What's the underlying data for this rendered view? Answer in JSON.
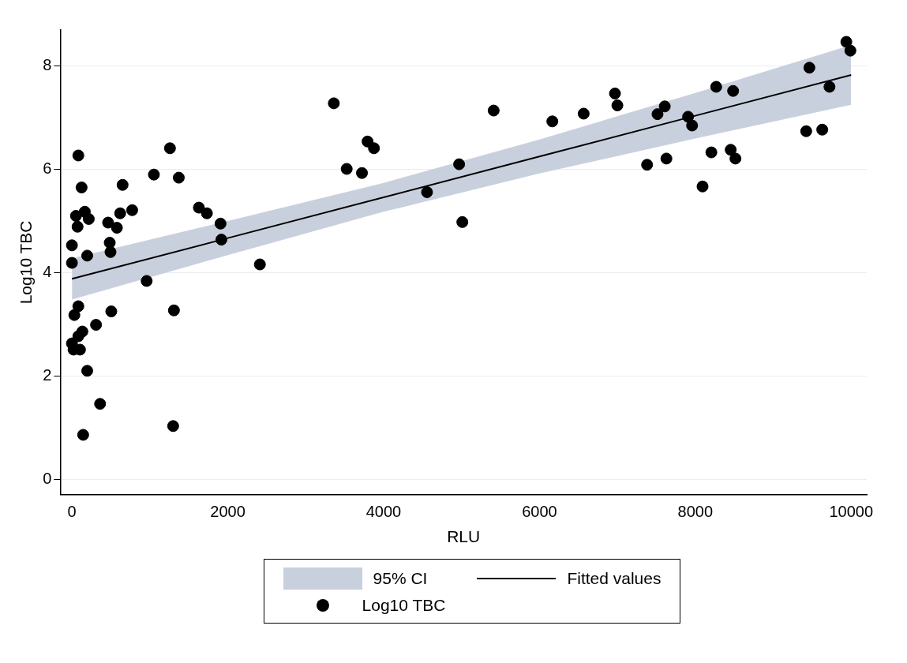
{
  "chart_data": {
    "type": "scatter",
    "xlabel": "RLU",
    "ylabel": "Log10 TBC",
    "xlim": [
      -150,
      10200
    ],
    "ylim": [
      -0.3,
      8.7
    ],
    "xticks": [
      0,
      2000,
      4000,
      6000,
      8000,
      10000
    ],
    "yticks": [
      0,
      2,
      4,
      6,
      8
    ],
    "grid": "y",
    "annotations": [
      "95% CI"
    ],
    "legend": "bottom",
    "line_style": "solid",
    "series": [
      {
        "name": "Fitted values",
        "type": "line",
        "marker": "none",
        "color": "#000000",
        "x": [
          0,
          2000,
          4000,
          6000,
          8000,
          10000
        ],
        "values": [
          3.88,
          4.67,
          5.46,
          6.25,
          7.04,
          7.83
        ],
        "lower": [
          3.48,
          4.34,
          5.18,
          5.92,
          6.6,
          7.25
        ],
        "upper": [
          4.28,
          5.0,
          5.74,
          6.58,
          7.48,
          8.41
        ]
      },
      {
        "name": "Log10 TBC",
        "type": "scatter",
        "marker": "circle",
        "color": "#000000",
        "x": [
          82,
          124,
          52,
          165,
          216,
          72,
          0,
          0,
          196,
          464,
          577,
          485,
          495,
          650,
          619,
          773,
          1052,
          1258,
          1371,
          1629,
          1732,
          1907,
          1918,
          2412,
          959,
          82,
          31,
          505,
          1309,
          309,
          134,
          82,
          0,
          21,
          103,
          196,
          361,
          144,
          1299,
          3361,
          3526,
          3722,
          3794,
          3876,
          4557,
          4969,
          5010,
          5412,
          6165,
          6567,
          6969,
          7000,
          7381,
          7515,
          7608,
          7629,
          7907,
          7959,
          8093,
          8206,
          8268,
          8454,
          8485,
          8515,
          9423,
          9464,
          9629,
          9722,
          9938,
          9990
        ],
        "values": [
          6.27,
          5.65,
          5.1,
          5.18,
          5.04,
          4.89,
          4.53,
          4.19,
          4.33,
          4.97,
          4.87,
          4.58,
          4.4,
          5.7,
          5.15,
          5.21,
          5.9,
          6.41,
          5.84,
          5.26,
          5.15,
          4.95,
          4.64,
          4.16,
          3.84,
          3.35,
          3.18,
          3.25,
          3.27,
          2.99,
          2.86,
          2.77,
          2.63,
          2.51,
          2.51,
          2.1,
          1.46,
          0.86,
          1.03,
          7.28,
          6.01,
          5.93,
          6.54,
          6.41,
          5.56,
          6.1,
          4.98,
          7.14,
          6.93,
          7.08,
          7.47,
          7.24,
          6.09,
          7.07,
          7.22,
          6.21,
          7.02,
          6.85,
          5.67,
          6.33,
          7.6,
          6.38,
          7.52,
          6.21,
          6.74,
          7.97,
          6.77,
          7.6,
          8.47,
          8.3
        ]
      }
    ]
  }
}
